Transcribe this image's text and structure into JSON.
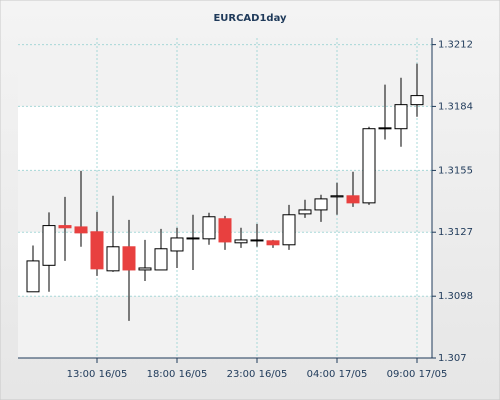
{
  "chart_data": {
    "type": "candlestick",
    "title": "EURCAD1day",
    "categories": [
      null,
      null,
      null,
      null,
      "13:00 16/05",
      null,
      null,
      null,
      null,
      "18:00 16/05",
      null,
      null,
      null,
      null,
      "23:00 16/05",
      null,
      null,
      null,
      null,
      "04:00 17/05",
      null,
      null,
      null,
      null,
      "09:00 17/05"
    ],
    "open": [
      1.31,
      1.3112,
      1.313,
      1.31294,
      1.31272,
      1.31095,
      1.31204,
      1.31099,
      1.31099,
      1.31185,
      1.3124,
      1.3124,
      1.31331,
      1.31222,
      1.31231,
      1.31231,
      1.31213,
      1.31353,
      1.31371,
      1.3143,
      1.31435,
      1.31403,
      1.31739,
      1.31739,
      1.31848
    ],
    "high": [
      1.3121,
      1.3136,
      1.3143,
      1.31548,
      1.31362,
      1.31435,
      1.31326,
      1.31235,
      1.31285,
      1.3129,
      1.31349,
      1.31358,
      1.31344,
      1.3129,
      1.31308,
      1.31235,
      1.31394,
      1.31417,
      1.3144,
      1.31494,
      1.31544,
      1.31748,
      1.31939,
      1.3197,
      1.32034
    ],
    "low": [
      1.31,
      1.31,
      1.3114,
      1.31204,
      1.31072,
      1.3109,
      1.30868,
      1.31049,
      1.31099,
      1.31108,
      1.31099,
      1.31213,
      1.3119,
      1.31199,
      1.31204,
      1.31199,
      1.3119,
      1.31335,
      1.31317,
      1.31349,
      1.31385,
      1.31394,
      1.3169,
      1.31657,
      1.31793
    ],
    "close": [
      1.3114,
      1.313,
      1.3129,
      1.31267,
      1.31104,
      1.31204,
      1.31099,
      1.31108,
      1.31195,
      1.31244,
      1.31244,
      1.3134,
      1.31226,
      1.31235,
      1.31235,
      1.31213,
      1.31349,
      1.31371,
      1.31421,
      1.31435,
      1.31403,
      1.31739,
      1.31743,
      1.31848,
      1.31889
    ],
    "up_color": "#ffffff",
    "down_color": "#e8403f",
    "ylim": [
      1.307,
      1.3215
    ],
    "yticks": [
      1.307,
      1.3098,
      1.3127,
      1.3155,
      1.3184,
      1.3212
    ],
    "grid": true
  }
}
